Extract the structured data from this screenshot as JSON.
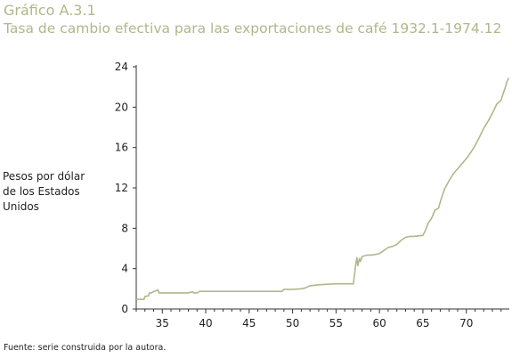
{
  "figure": {
    "label": "Gráfico A.3.1",
    "title": "Tasa de cambio efectiva para las exportaciones de café 1932.1-1974.12",
    "source": "Fuente: serie construida por la autora."
  },
  "colors": {
    "title": "#aeb889",
    "line": "#aeb889",
    "axis": "#333333"
  },
  "chart_data": {
    "type": "line",
    "title": "Tasa de cambio efectiva para las exportaciones de café 1932.1-1974.12",
    "xlabel": "",
    "ylabel": "Pesos por dólar de los Estados Unidos",
    "xlim": [
      1932.0,
      1974.95
    ],
    "ylim": [
      0,
      24
    ],
    "x_ticks": [
      35,
      40,
      45,
      50,
      55,
      60,
      65,
      70
    ],
    "y_ticks": [
      0,
      4,
      8,
      12,
      16,
      20,
      24
    ],
    "grid": false,
    "series": [
      {
        "x": [
          1932.0,
          1932.9,
          1933.0,
          1933.4,
          1933.5,
          1933.8,
          1934.0,
          1934.3,
          1934.5,
          1934.6,
          1934.8,
          1935.0,
          1936.0,
          1937.0,
          1938.0,
          1938.5,
          1938.6,
          1939.0,
          1939.3,
          1939.5,
          1940.0,
          1942.0,
          1945.0,
          1948.0,
          1948.8,
          1949.0,
          1950.0,
          1951.0,
          1951.5,
          1952.0,
          1952.5,
          1953.0,
          1954.0,
          1955.0,
          1955.5,
          1956.0,
          1957.0,
          1957.3,
          1957.4,
          1957.5,
          1957.7,
          1957.8,
          1958.0,
          1958.4,
          1958.6,
          1959.0,
          1959.5,
          1960.0,
          1960.5,
          1961.0,
          1961.5,
          1962.0,
          1962.5,
          1963.0,
          1963.5,
          1964.0,
          1964.5,
          1965.0,
          1965.3,
          1965.6,
          1966.0,
          1966.4,
          1966.8,
          1967.0,
          1967.5,
          1968.0,
          1968.5,
          1969.0,
          1969.5,
          1970.0,
          1970.5,
          1971.0,
          1971.5,
          1972.0,
          1972.5,
          1973.0,
          1973.5,
          1974.0,
          1974.3,
          1974.5,
          1974.7,
          1974.9
        ],
        "y": [
          0.95,
          0.95,
          1.25,
          1.3,
          1.6,
          1.6,
          1.75,
          1.8,
          1.9,
          1.6,
          1.6,
          1.6,
          1.6,
          1.6,
          1.6,
          1.7,
          1.6,
          1.6,
          1.75,
          1.75,
          1.75,
          1.75,
          1.75,
          1.75,
          1.75,
          1.95,
          1.95,
          2.0,
          2.1,
          2.3,
          2.35,
          2.4,
          2.45,
          2.5,
          2.5,
          2.5,
          2.5,
          4.6,
          5.1,
          4.3,
          5.0,
          4.7,
          5.2,
          5.3,
          5.35,
          5.35,
          5.4,
          5.5,
          5.8,
          6.1,
          6.2,
          6.4,
          6.8,
          7.1,
          7.2,
          7.2,
          7.25,
          7.3,
          7.8,
          8.5,
          9.0,
          9.8,
          10.0,
          10.6,
          11.9,
          12.7,
          13.4,
          13.9,
          14.4,
          14.9,
          15.5,
          16.2,
          17.0,
          17.9,
          18.6,
          19.4,
          20.3,
          20.7,
          21.5,
          22.0,
          22.6,
          22.9
        ]
      }
    ]
  }
}
